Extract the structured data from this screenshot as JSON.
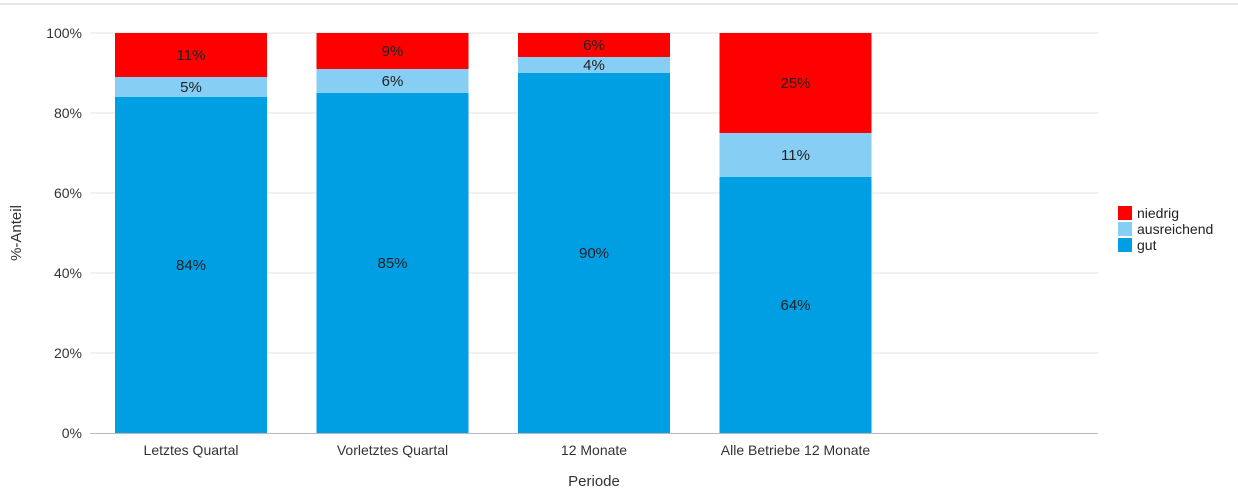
{
  "chart_data": {
    "type": "bar",
    "stacked": true,
    "categories": [
      "Letztes Quartal",
      "Vorletztes Quartal",
      "12 Monate",
      "Alle Betriebe 12 Monate"
    ],
    "series": [
      {
        "name": "gut",
        "color": "#009fe3",
        "values": [
          84,
          85,
          90,
          64
        ],
        "labels": [
          "84%",
          "85%",
          "90%",
          "64%"
        ]
      },
      {
        "name": "ausreichend",
        "color": "#87cef5",
        "values": [
          5,
          6,
          4,
          11
        ],
        "labels": [
          "5%",
          "6%",
          "4%",
          "11%"
        ]
      },
      {
        "name": "niedrig",
        "color": "#ff0000",
        "values": [
          11,
          9,
          6,
          25
        ],
        "labels": [
          "11%",
          "9%",
          "6%",
          "25%"
        ]
      }
    ],
    "legend_order": [
      "niedrig",
      "ausreichend",
      "gut"
    ],
    "title": "",
    "xlabel": "Periode",
    "ylabel": "%-Anteil",
    "ylim": [
      0,
      100
    ],
    "yticks": [
      "0%",
      "20%",
      "40%",
      "60%",
      "80%",
      "100%"
    ],
    "grid": true,
    "legend_position": "right"
  }
}
